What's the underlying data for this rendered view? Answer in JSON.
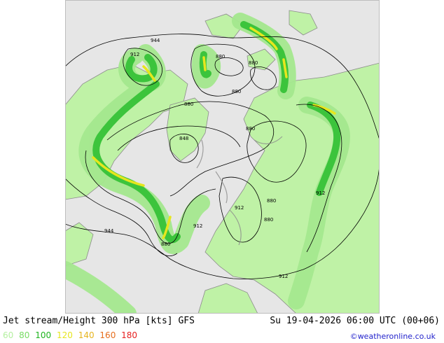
{
  "header": {
    "title": "Jet stream/Height 300 hPa [kts] GFS",
    "datetime": "Su 19-04-2026 06:00 UTC (00+06)"
  },
  "legend": [
    {
      "label": "60",
      "color": "#b4f0a0"
    },
    {
      "label": "80",
      "color": "#78dc64"
    },
    {
      "label": "100",
      "color": "#1eb41e"
    },
    {
      "label": "120",
      "color": "#e6e61e"
    },
    {
      "label": "140",
      "color": "#e6b41e"
    },
    {
      "label": "160",
      "color": "#e66e1e"
    },
    {
      "label": "180",
      "color": "#e61e1e"
    }
  ],
  "credit": "©weatheronline.co.uk",
  "contour_labels": [
    "944",
    "912",
    "880",
    "880",
    "880",
    "880",
    "880",
    "848",
    "880",
    "912",
    "912",
    "880",
    "944",
    "912",
    "880",
    "912"
  ],
  "colors": {
    "ocean": "#e6e6e6",
    "land": "#bff2a6",
    "jet_light": "#a4e88e",
    "jet_mid": "#3cc43c",
    "jet_core": "#e6e61e",
    "coast": "#8c8c8c"
  }
}
